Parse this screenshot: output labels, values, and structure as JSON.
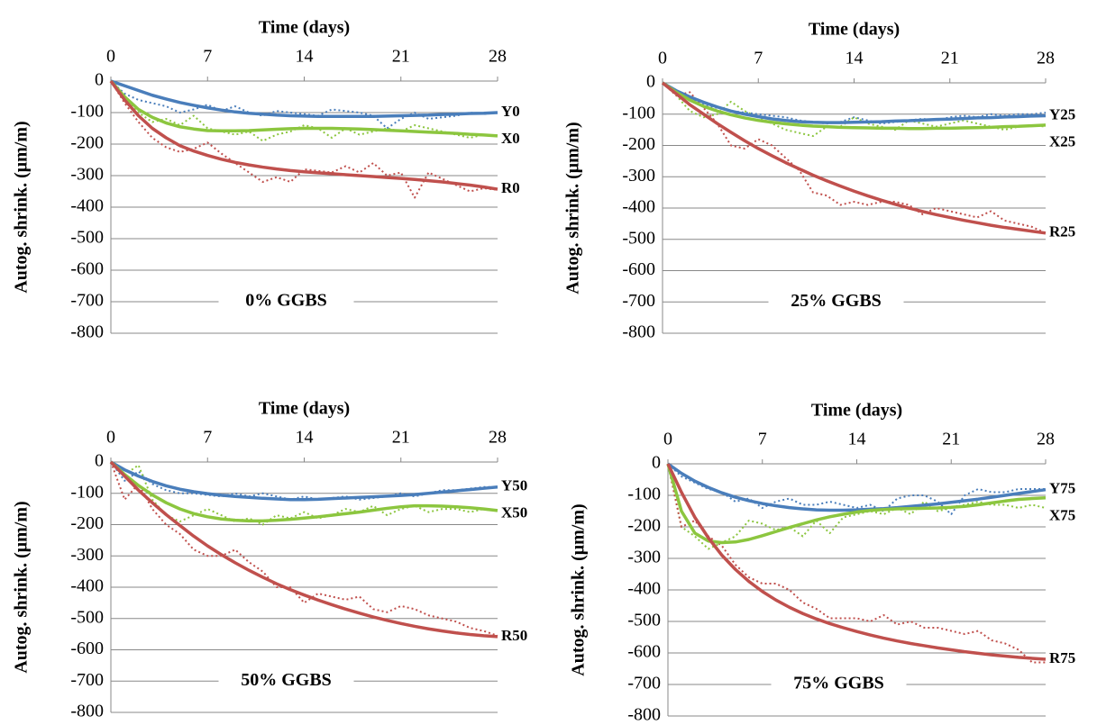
{
  "chart_data": [
    {
      "type": "line",
      "x_label": "Time (days)",
      "y_label": "Autog. shrink. (μm/m)",
      "annotation": "0% GGBS",
      "x": [
        0,
        1,
        2,
        3,
        4,
        5,
        6,
        7,
        8,
        9,
        10,
        11,
        12,
        13,
        14,
        15,
        16,
        17,
        18,
        19,
        20,
        21,
        22,
        23,
        24,
        25,
        26,
        27,
        28
      ],
      "xlim": [
        0,
        28
      ],
      "xticks": [
        0,
        7,
        14,
        21,
        28
      ],
      "ylim": [
        -800,
        0
      ],
      "yticks": [
        -800,
        -700,
        -600,
        -500,
        -400,
        -300,
        -200,
        -100,
        0
      ],
      "grid": true,
      "series": [
        {
          "name": "Y0",
          "color": "#4a7ebb",
          "values": [
            0,
            -15,
            -30,
            -45,
            -57,
            -68,
            -77,
            -85,
            -92,
            -98,
            -102,
            -105,
            -108,
            -110,
            -111,
            -112,
            -112,
            -112,
            -112,
            -112,
            -111,
            -110,
            -109,
            -108,
            -106,
            -105,
            -103,
            -102,
            -100
          ]
        },
        {
          "name": "X0",
          "color": "#8cc63f",
          "values": [
            0,
            -50,
            -90,
            -115,
            -133,
            -145,
            -152,
            -157,
            -158,
            -158,
            -157,
            -155,
            -153,
            -151,
            -150,
            -150,
            -150,
            -151,
            -152,
            -154,
            -156,
            -158,
            -160,
            -162,
            -164,
            -166,
            -169,
            -171,
            -174
          ]
        },
        {
          "name": "R0",
          "color": "#c0504d",
          "values": [
            0,
            -60,
            -110,
            -150,
            -180,
            -205,
            -222,
            -236,
            -248,
            -258,
            -266,
            -273,
            -279,
            -284,
            -288,
            -291,
            -294,
            -297,
            -300,
            -303,
            -306,
            -309,
            -312,
            -316,
            -320,
            -325,
            -330,
            -336,
            -343
          ]
        },
        {
          "color": "#4a7ebb",
          "dash": "dotted",
          "values": [
            0,
            -40,
            -60,
            -70,
            -80,
            -100,
            -90,
            -75,
            -95,
            -80,
            -100,
            -110,
            -95,
            -100,
            -105,
            -110,
            -90,
            -95,
            -100,
            -110,
            -150,
            -120,
            -100,
            -120,
            -115,
            -110,
            -100,
            -105,
            -100
          ]
        },
        {
          "color": "#8cc63f",
          "dash": "dotted",
          "values": [
            0,
            -50,
            -100,
            -130,
            -120,
            -140,
            -110,
            -150,
            -160,
            -170,
            -160,
            -190,
            -170,
            -160,
            -140,
            -150,
            -180,
            -150,
            -170,
            -160,
            -150,
            -160,
            -140,
            -150,
            -160,
            -170,
            -180,
            -170,
            -175
          ]
        },
        {
          "color": "#c0504d",
          "dash": "dotted",
          "values": [
            0,
            -70,
            -130,
            -180,
            -210,
            -225,
            -215,
            -195,
            -230,
            -260,
            -290,
            -320,
            -305,
            -320,
            -280,
            -285,
            -290,
            -270,
            -290,
            -260,
            -300,
            -290,
            -370,
            -290,
            -310,
            -330,
            -350,
            -340,
            -345
          ]
        }
      ]
    },
    {
      "type": "line",
      "x_label": "Time (days)",
      "y_label": "Autog. shrink. (μm/m)",
      "annotation": "25% GGBS",
      "x": [
        0,
        1,
        2,
        3,
        4,
        5,
        6,
        7,
        8,
        9,
        10,
        11,
        12,
        13,
        14,
        15,
        16,
        17,
        18,
        19,
        20,
        21,
        22,
        23,
        24,
        25,
        26,
        27,
        28
      ],
      "xlim": [
        0,
        28
      ],
      "xticks": [
        0,
        7,
        14,
        21,
        28
      ],
      "ylim": [
        -800,
        0
      ],
      "yticks": [
        -800,
        -700,
        -600,
        -500,
        -400,
        -300,
        -200,
        -100,
        0
      ],
      "grid": true,
      "series": [
        {
          "name": "Y25",
          "color": "#4a7ebb",
          "values": [
            0,
            -25,
            -45,
            -62,
            -77,
            -90,
            -100,
            -108,
            -115,
            -120,
            -124,
            -126,
            -127,
            -127,
            -126,
            -125,
            -124,
            -122,
            -121,
            -119,
            -117,
            -116,
            -114,
            -112,
            -111,
            -109,
            -108,
            -106,
            -105
          ]
        },
        {
          "name": "X25",
          "color": "#8cc63f",
          "values": [
            0,
            -30,
            -55,
            -75,
            -90,
            -102,
            -112,
            -120,
            -126,
            -131,
            -135,
            -138,
            -140,
            -142,
            -143,
            -144,
            -145,
            -145,
            -146,
            -146,
            -145,
            -145,
            -144,
            -143,
            -142,
            -140,
            -139,
            -137,
            -135
          ]
        },
        {
          "name": "R25",
          "color": "#c0504d",
          "values": [
            0,
            -35,
            -70,
            -100,
            -130,
            -158,
            -185,
            -210,
            -233,
            -255,
            -275,
            -295,
            -313,
            -330,
            -346,
            -361,
            -375,
            -388,
            -400,
            -411,
            -421,
            -430,
            -439,
            -447,
            -455,
            -462,
            -468,
            -474,
            -480
          ]
        },
        {
          "color": "#4a7ebb",
          "dash": "dotted",
          "values": [
            0,
            -30,
            -50,
            -70,
            -80,
            -90,
            -95,
            -100,
            -105,
            -110,
            -120,
            -125,
            -130,
            -125,
            -110,
            -120,
            -130,
            -125,
            -120,
            -115,
            -120,
            -110,
            -105,
            -110,
            -100,
            -105,
            -100,
            -100,
            -95
          ]
        },
        {
          "color": "#8cc63f",
          "dash": "dotted",
          "values": [
            0,
            -40,
            -90,
            -110,
            -100,
            -60,
            -90,
            -110,
            -130,
            -150,
            -160,
            -170,
            -140,
            -140,
            -110,
            -130,
            -140,
            -150,
            -120,
            -130,
            -140,
            -130,
            -120,
            -130,
            -140,
            -150,
            -140,
            -135,
            -140
          ]
        },
        {
          "color": "#c0504d",
          "dash": "dotted",
          "values": [
            0,
            -40,
            -30,
            -80,
            -130,
            -200,
            -210,
            -180,
            -200,
            -240,
            -280,
            -350,
            -360,
            -390,
            -380,
            -390,
            -380,
            -380,
            -390,
            -420,
            -400,
            -410,
            -420,
            -430,
            -410,
            -440,
            -450,
            -460,
            -480
          ]
        }
      ]
    },
    {
      "type": "line",
      "x_label": "Time (days)",
      "y_label": "Autog. shrink. (μm/m)",
      "annotation": "50% GGBS",
      "x": [
        0,
        1,
        2,
        3,
        4,
        5,
        6,
        7,
        8,
        9,
        10,
        11,
        12,
        13,
        14,
        15,
        16,
        17,
        18,
        19,
        20,
        21,
        22,
        23,
        24,
        25,
        26,
        27,
        28
      ],
      "xlim": [
        0,
        28
      ],
      "xticks": [
        0,
        7,
        14,
        21,
        28
      ],
      "ylim": [
        -800,
        0
      ],
      "yticks": [
        -800,
        -700,
        -600,
        -500,
        -400,
        -300,
        -200,
        -100,
        0
      ],
      "grid": true,
      "series": [
        {
          "name": "Y50",
          "color": "#4a7ebb",
          "values": [
            0,
            -25,
            -45,
            -62,
            -76,
            -87,
            -95,
            -101,
            -106,
            -110,
            -113,
            -116,
            -118,
            -120,
            -120,
            -119,
            -117,
            -115,
            -113,
            -111,
            -109,
            -107,
            -104,
            -100,
            -96,
            -92,
            -88,
            -84,
            -80
          ]
        },
        {
          "name": "X50",
          "color": "#8cc63f",
          "values": [
            0,
            -40,
            -75,
            -105,
            -130,
            -150,
            -165,
            -175,
            -182,
            -186,
            -188,
            -188,
            -186,
            -183,
            -179,
            -175,
            -170,
            -165,
            -160,
            -154,
            -148,
            -143,
            -140,
            -140,
            -141,
            -143,
            -146,
            -150,
            -155
          ]
        },
        {
          "name": "R50",
          "color": "#c0504d",
          "values": [
            0,
            -45,
            -90,
            -130,
            -168,
            -203,
            -237,
            -268,
            -296,
            -322,
            -346,
            -368,
            -389,
            -408,
            -425,
            -441,
            -456,
            -470,
            -483,
            -495,
            -506,
            -516,
            -525,
            -533,
            -540,
            -546,
            -551,
            -555,
            -558
          ]
        },
        {
          "color": "#4a7ebb",
          "dash": "dotted",
          "values": [
            0,
            -60,
            -30,
            -70,
            -90,
            -100,
            -100,
            -105,
            -110,
            -100,
            -110,
            -100,
            -110,
            -120,
            -110,
            -120,
            -115,
            -110,
            -120,
            -115,
            -110,
            -100,
            -110,
            -100,
            -90,
            -90,
            -85,
            -80,
            -80
          ]
        },
        {
          "color": "#8cc63f",
          "dash": "dotted",
          "values": [
            0,
            -40,
            -10,
            -120,
            -170,
            -190,
            -170,
            -150,
            -170,
            -190,
            -180,
            -200,
            -170,
            -180,
            -160,
            -180,
            -170,
            -150,
            -160,
            -140,
            -170,
            -150,
            -140,
            -160,
            -150,
            -150,
            -160,
            -150,
            -155
          ]
        },
        {
          "color": "#c0504d",
          "dash": "dotted",
          "values": [
            0,
            -120,
            -70,
            -150,
            -200,
            -230,
            -280,
            -300,
            -300,
            -280,
            -320,
            -350,
            -400,
            -400,
            -450,
            -420,
            -430,
            -440,
            -430,
            -470,
            -480,
            -460,
            -470,
            -490,
            -500,
            -510,
            -530,
            -540,
            -555
          ]
        }
      ]
    },
    {
      "type": "line",
      "x_label": "Time (days)",
      "y_label": "Autog. shrink. (μm/m)",
      "annotation": "75% GGBS",
      "x": [
        0,
        1,
        2,
        3,
        4,
        5,
        6,
        7,
        8,
        9,
        10,
        11,
        12,
        13,
        14,
        15,
        16,
        17,
        18,
        19,
        20,
        21,
        22,
        23,
        24,
        25,
        26,
        27,
        28
      ],
      "xlim": [
        0,
        28
      ],
      "xticks": [
        0,
        7,
        14,
        21,
        28
      ],
      "ylim": [
        -800,
        0
      ],
      "yticks": [
        -800,
        -700,
        -600,
        -500,
        -400,
        -300,
        -200,
        -100,
        0
      ],
      "grid": true,
      "series": [
        {
          "name": "Y75",
          "color": "#4a7ebb",
          "values": [
            0,
            -30,
            -55,
            -75,
            -92,
            -106,
            -117,
            -126,
            -133,
            -139,
            -143,
            -146,
            -147,
            -147,
            -146,
            -144,
            -142,
            -139,
            -135,
            -131,
            -127,
            -122,
            -117,
            -112,
            -106,
            -100,
            -94,
            -88,
            -82
          ]
        },
        {
          "name": "X75",
          "color": "#8cc63f",
          "values": [
            0,
            -150,
            -220,
            -245,
            -250,
            -248,
            -240,
            -228,
            -215,
            -202,
            -190,
            -178,
            -168,
            -160,
            -153,
            -148,
            -145,
            -143,
            -142,
            -141,
            -140,
            -138,
            -135,
            -130,
            -124,
            -118,
            -113,
            -110,
            -108
          ]
        },
        {
          "name": "R75",
          "color": "#c0504d",
          "values": [
            0,
            -90,
            -170,
            -235,
            -290,
            -335,
            -373,
            -405,
            -432,
            -455,
            -475,
            -492,
            -507,
            -520,
            -532,
            -543,
            -553,
            -562,
            -570,
            -577,
            -584,
            -590,
            -596,
            -601,
            -606,
            -610,
            -614,
            -617,
            -620
          ]
        },
        {
          "color": "#4a7ebb",
          "dash": "dotted",
          "values": [
            0,
            -40,
            -60,
            -80,
            -90,
            -120,
            -110,
            -140,
            -120,
            -110,
            -130,
            -130,
            -120,
            -130,
            -140,
            -130,
            -150,
            -110,
            -100,
            -100,
            -120,
            -160,
            -100,
            -80,
            -90,
            -90,
            -80,
            -80,
            -80
          ]
        },
        {
          "color": "#8cc63f",
          "dash": "dotted",
          "values": [
            0,
            -200,
            -230,
            -270,
            -250,
            -230,
            -180,
            -190,
            -210,
            -200,
            -230,
            -180,
            -220,
            -170,
            -160,
            -150,
            -160,
            -140,
            -160,
            -120,
            -150,
            -140,
            -130,
            -120,
            -130,
            -130,
            -140,
            -130,
            -140
          ]
        },
        {
          "color": "#c0504d",
          "dash": "dotted",
          "values": [
            0,
            -200,
            -180,
            -230,
            -260,
            -320,
            -360,
            -380,
            -380,
            -400,
            -440,
            -460,
            -490,
            -490,
            -490,
            -500,
            -480,
            -510,
            -500,
            -520,
            -520,
            -530,
            -540,
            -530,
            -560,
            -570,
            -590,
            -630,
            -630
          ]
        }
      ]
    }
  ]
}
